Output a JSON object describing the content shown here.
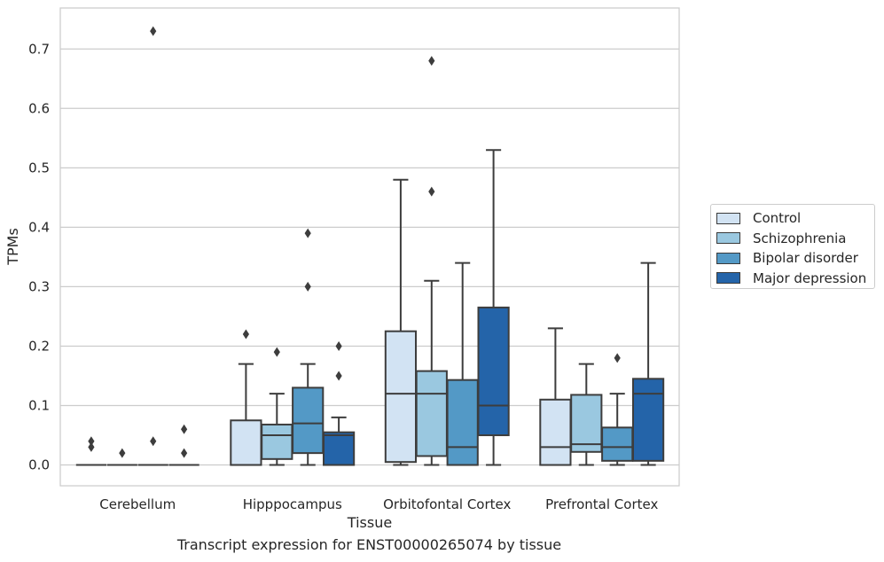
{
  "chart_data": {
    "type": "box",
    "xlabel": "Tissue",
    "ylabel": "TPMs",
    "caption": "Transcript expression for ENST00000265074 by tissue",
    "categories": [
      "Cerebellum",
      "Hipppocampus",
      "Orbitofontal Cortex",
      "Prefrontal Cortex"
    ],
    "ylim": [
      -0.035,
      0.769
    ],
    "yticks": [
      0.0,
      0.1,
      0.2,
      0.3,
      0.4,
      0.5,
      0.6,
      0.7
    ],
    "ytick_labels": [
      "0.0",
      "0.1",
      "0.2",
      "0.3",
      "0.4",
      "0.5",
      "0.6",
      "0.7"
    ],
    "grid": "horizontal",
    "legend_position": "right",
    "series": [
      {
        "name": "Control",
        "color": "#d2e3f3",
        "boxes": [
          {
            "whislo": 0,
            "q1": 0,
            "med": 0,
            "q3": 0,
            "whishi": 0,
            "fliers": [
              0.04,
              0.03
            ]
          },
          {
            "whislo": 0,
            "q1": 0,
            "med": 0,
            "q3": 0.075,
            "whishi": 0.17,
            "fliers": [
              0.22
            ]
          },
          {
            "whislo": 0,
            "q1": 0.005,
            "med": 0.12,
            "q3": 0.225,
            "whishi": 0.48,
            "fliers": []
          },
          {
            "whislo": 0,
            "q1": 0,
            "med": 0.03,
            "q3": 0.11,
            "whishi": 0.23,
            "fliers": []
          }
        ]
      },
      {
        "name": "Schizophrenia",
        "color": "#9ac8e0",
        "boxes": [
          {
            "whislo": 0,
            "q1": 0,
            "med": 0,
            "q3": 0,
            "whishi": 0,
            "fliers": [
              0.02
            ]
          },
          {
            "whislo": 0,
            "q1": 0.01,
            "med": 0.05,
            "q3": 0.068,
            "whishi": 0.12,
            "fliers": [
              0.19
            ]
          },
          {
            "whislo": 0,
            "q1": 0.015,
            "med": 0.12,
            "q3": 0.158,
            "whishi": 0.31,
            "fliers": [
              0.46,
              0.68
            ]
          },
          {
            "whislo": 0,
            "q1": 0.022,
            "med": 0.035,
            "q3": 0.118,
            "whishi": 0.17,
            "fliers": []
          }
        ]
      },
      {
        "name": "Bipolar disorder",
        "color": "#5399c6",
        "boxes": [
          {
            "whislo": 0,
            "q1": 0,
            "med": 0,
            "q3": 0,
            "whishi": 0,
            "fliers": [
              0.04,
              0.73
            ]
          },
          {
            "whislo": 0,
            "q1": 0.02,
            "med": 0.07,
            "q3": 0.13,
            "whishi": 0.17,
            "fliers": [
              0.3,
              0.39
            ]
          },
          {
            "whislo": 0,
            "q1": 0,
            "med": 0.03,
            "q3": 0.143,
            "whishi": 0.34,
            "fliers": []
          },
          {
            "whislo": 0,
            "q1": 0.007,
            "med": 0.03,
            "q3": 0.063,
            "whishi": 0.12,
            "fliers": [
              0.18
            ]
          }
        ]
      },
      {
        "name": "Major depression",
        "color": "#2464a9",
        "boxes": [
          {
            "whislo": 0,
            "q1": 0,
            "med": 0,
            "q3": 0,
            "whishi": 0,
            "fliers": [
              0.06,
              0.02
            ]
          },
          {
            "whislo": 0,
            "q1": 0,
            "med": 0.05,
            "q3": 0.055,
            "whishi": 0.08,
            "fliers": [
              0.15,
              0.2
            ]
          },
          {
            "whislo": 0,
            "q1": 0.05,
            "med": 0.1,
            "q3": 0.265,
            "whishi": 0.53,
            "fliers": []
          },
          {
            "whislo": 0,
            "q1": 0.007,
            "med": 0.12,
            "q3": 0.145,
            "whishi": 0.34,
            "fliers": []
          }
        ]
      }
    ]
  }
}
